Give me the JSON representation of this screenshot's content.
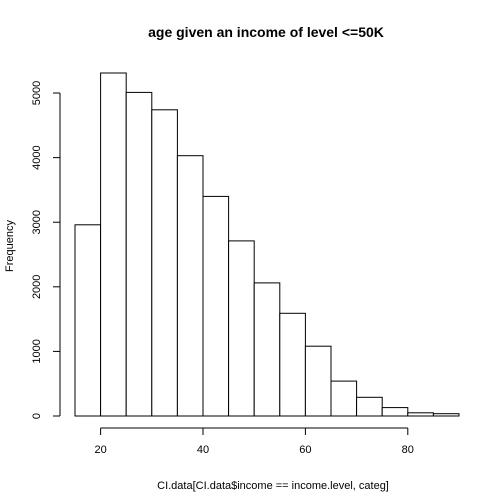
{
  "chart_data": {
    "type": "bar",
    "title": "age given an income of level <=50K",
    "xlabel": "CI.data[CI.data$income == income.level, categ]",
    "ylabel": "Frequency",
    "bin_edges": [
      15,
      20,
      25,
      30,
      35,
      40,
      45,
      50,
      55,
      60,
      65,
      70,
      75,
      80,
      85,
      90
    ],
    "values": [
      2960,
      5310,
      5010,
      4740,
      4030,
      3400,
      2710,
      2060,
      1590,
      1080,
      540,
      290,
      130,
      50,
      35
    ],
    "xlim": [
      15,
      90
    ],
    "ylim": [
      0,
      5310
    ],
    "x_ticks": [
      20,
      40,
      60,
      80
    ],
    "y_ticks": [
      0,
      1000,
      2000,
      3000,
      4000,
      5000
    ],
    "grid": false,
    "legend": "none",
    "colors": {
      "bar_fill": "#ffffff",
      "bar_stroke": "#000000"
    }
  }
}
